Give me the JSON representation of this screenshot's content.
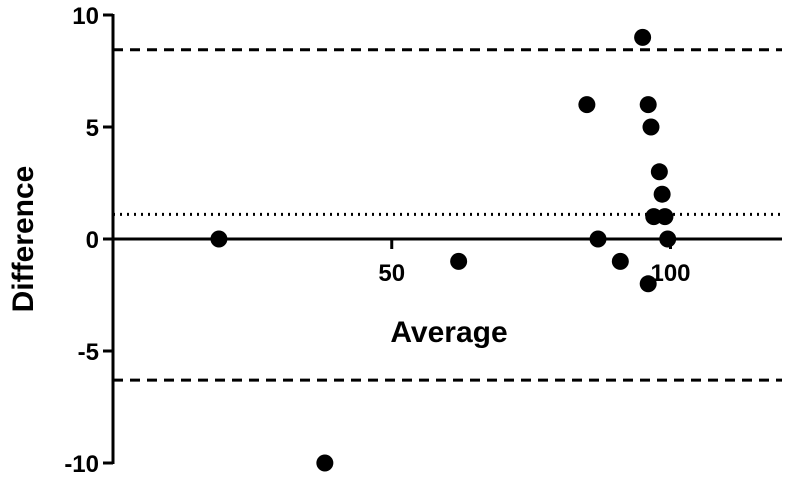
{
  "chart_data": {
    "type": "scatter",
    "title": "",
    "xlabel": "Average",
    "ylabel": "Difference",
    "xlim": [
      0,
      120
    ],
    "ylim": [
      -10,
      10
    ],
    "x_ticks": [
      50,
      100
    ],
    "x_tick_labels": [
      "50",
      "100"
    ],
    "y_ticks": [
      10,
      5,
      0,
      -5,
      -10
    ],
    "y_tick_labels": [
      "10",
      "5",
      "0",
      "-5",
      "-10"
    ],
    "grid": false,
    "points": [
      {
        "x": 19,
        "y": 0
      },
      {
        "x": 38,
        "y": -10
      },
      {
        "x": 62,
        "y": -1
      },
      {
        "x": 85,
        "y": 6
      },
      {
        "x": 87,
        "y": 0
      },
      {
        "x": 91,
        "y": -1
      },
      {
        "x": 95,
        "y": 9
      },
      {
        "x": 96,
        "y": 6
      },
      {
        "x": 96,
        "y": -2
      },
      {
        "x": 96.5,
        "y": 5
      },
      {
        "x": 97,
        "y": 1
      },
      {
        "x": 98,
        "y": 3
      },
      {
        "x": 98.5,
        "y": 2
      },
      {
        "x": 99,
        "y": 1
      },
      {
        "x": 99.5,
        "y": 0
      }
    ],
    "reference_lines": [
      {
        "y": 8.45,
        "style": "dashed"
      },
      {
        "y": 1.1,
        "style": "dotted"
      },
      {
        "y": -6.3,
        "style": "dashed"
      }
    ],
    "colors": {
      "points": "#000000",
      "lines": "#000000"
    }
  }
}
